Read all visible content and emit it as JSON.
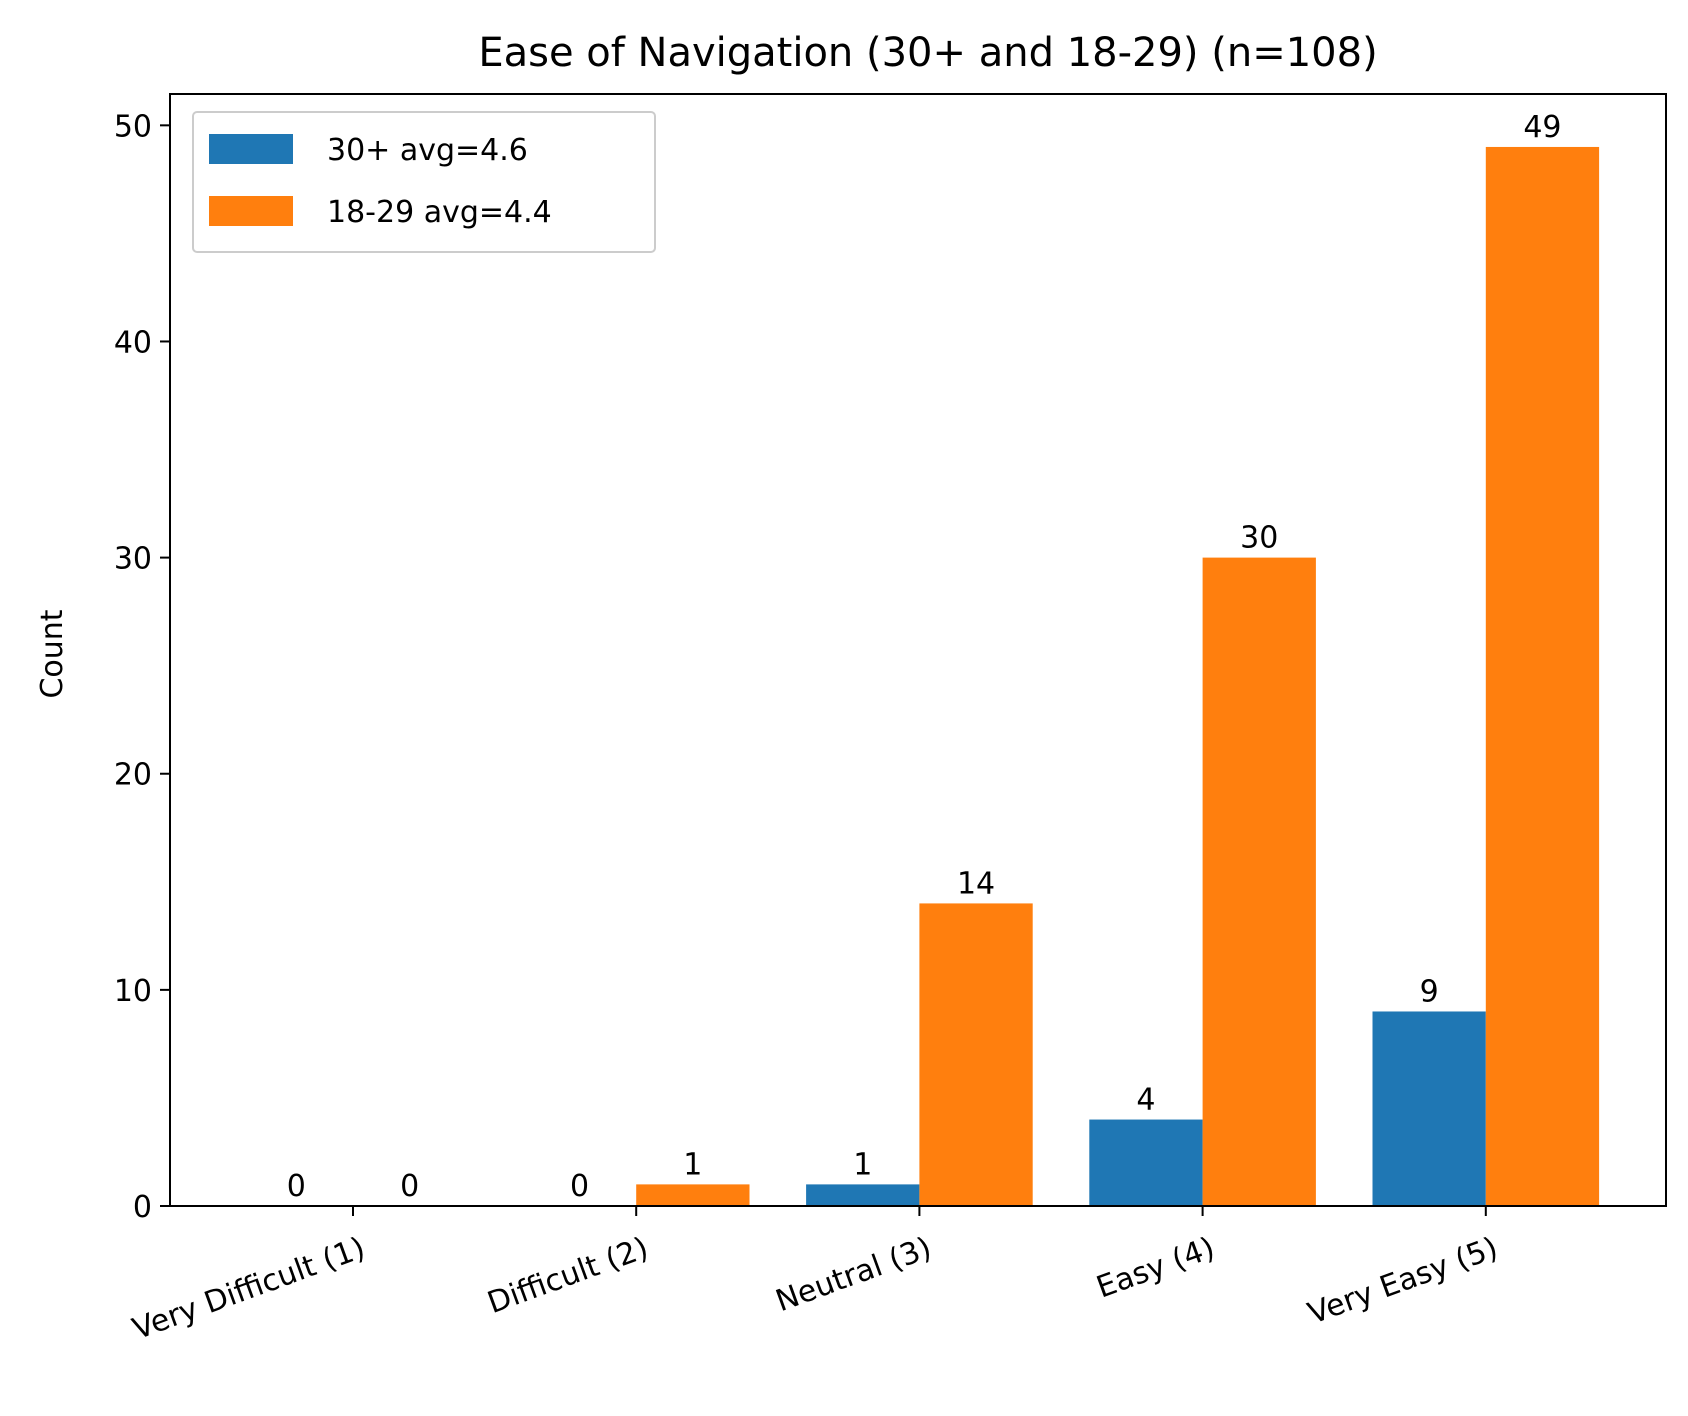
{
  "chart_data": {
    "type": "bar",
    "title": "Ease of Navigation (30+ and 18-29) (n=108)",
    "xlabel": "",
    "ylabel": "Count",
    "categories": [
      "Very Difficult (1)",
      "Difficult (2)",
      "Neutral (3)",
      "Easy (4)",
      "Very Easy (5)"
    ],
    "series": [
      {
        "name": "30+ avg=4.6",
        "color": "#1f77b4",
        "values": [
          0,
          0,
          1,
          4,
          9
        ]
      },
      {
        "name": "18-29 avg=4.4",
        "color": "#ff7f0e",
        "values": [
          0,
          1,
          14,
          30,
          49
        ]
      }
    ],
    "ylim": [
      0,
      51.45
    ],
    "yticks": [
      0,
      10,
      20,
      30,
      40,
      50
    ],
    "grid": false,
    "legend_position": "top-left"
  }
}
